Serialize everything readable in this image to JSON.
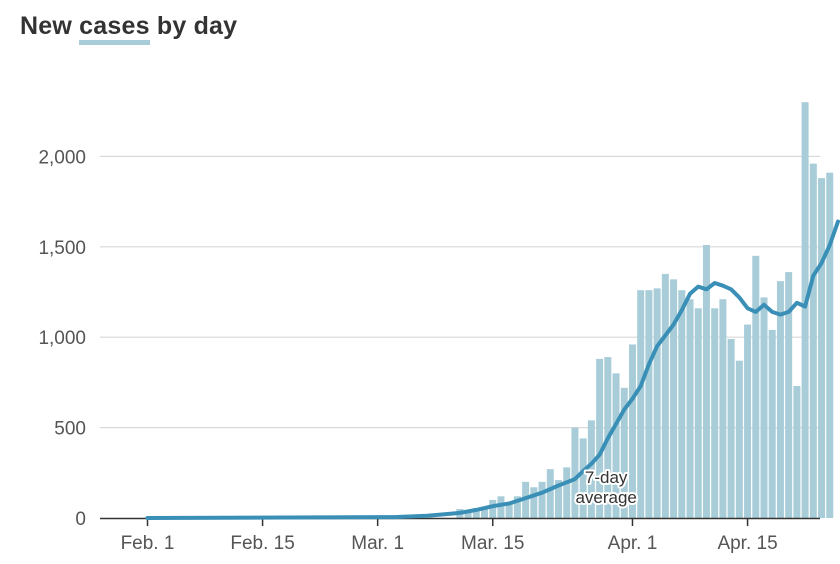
{
  "title": {
    "prefix": "New",
    "highlight": "cases",
    "suffix": "by day"
  },
  "colors": {
    "bar": "#a8cdd9",
    "line": "#3a8fb7",
    "grid": "#d9d9d9",
    "axis": "#333333",
    "text": "#555555"
  },
  "chart_data": {
    "type": "bar",
    "ylim": [
      0,
      2300
    ],
    "yticks": [
      0,
      500,
      1000,
      1500,
      2000
    ],
    "ytick_labels": [
      "0",
      "500",
      "1,000",
      "1,500",
      "2,000"
    ],
    "x_start_day": 0,
    "xticks": [
      {
        "day": 0,
        "label": "Feb. 1"
      },
      {
        "day": 14,
        "label": "Feb. 15"
      },
      {
        "day": 28,
        "label": "Mar. 1"
      },
      {
        "day": 42,
        "label": "Mar. 15"
      },
      {
        "day": 59,
        "label": "Apr. 1"
      },
      {
        "day": 73,
        "label": "Apr. 15"
      }
    ],
    "bars": {
      "name": "New cases",
      "start_day": 0,
      "values": [
        0,
        0,
        0,
        0,
        0,
        0,
        0,
        0,
        0,
        0,
        0,
        0,
        0,
        0,
        0,
        0,
        0,
        0,
        0,
        0,
        0,
        0,
        0,
        0,
        0,
        0,
        0,
        0,
        0,
        0,
        0,
        0,
        0,
        0,
        0,
        0,
        0,
        0,
        50,
        30,
        55,
        60,
        100,
        120,
        85,
        120,
        200,
        170,
        200,
        270,
        210,
        280,
        500,
        440,
        540,
        880,
        890,
        800,
        720,
        960,
        1260,
        1260,
        1270,
        1350,
        1320,
        1260,
        1210,
        1160,
        1510,
        1160,
        1210,
        990,
        870,
        1070,
        1450,
        1220,
        1040,
        1310,
        1360,
        730,
        2300,
        1960,
        1880,
        1910
      ]
    },
    "average": {
      "name": "7-day average",
      "points": [
        [
          0,
          0
        ],
        [
          30,
          5
        ],
        [
          34,
          12
        ],
        [
          36,
          20
        ],
        [
          38,
          28
        ],
        [
          40,
          45
        ],
        [
          42,
          65
        ],
        [
          44,
          80
        ],
        [
          46,
          110
        ],
        [
          48,
          140
        ],
        [
          50,
          180
        ],
        [
          52,
          215
        ],
        [
          53,
          260
        ],
        [
          54,
          300
        ],
        [
          55,
          350
        ],
        [
          56,
          440
        ],
        [
          57,
          520
        ],
        [
          58,
          600
        ],
        [
          59,
          660
        ],
        [
          60,
          730
        ],
        [
          61,
          850
        ],
        [
          62,
          950
        ],
        [
          63,
          1010
        ],
        [
          64,
          1070
        ],
        [
          65,
          1150
        ],
        [
          66,
          1240
        ],
        [
          67,
          1280
        ],
        [
          68,
          1265
        ],
        [
          69,
          1300
        ],
        [
          70,
          1285
        ],
        [
          71,
          1265
        ],
        [
          72,
          1220
        ],
        [
          73,
          1160
        ],
        [
          74,
          1140
        ],
        [
          75,
          1180
        ],
        [
          76,
          1140
        ],
        [
          77,
          1125
        ],
        [
          78,
          1140
        ],
        [
          79,
          1190
        ],
        [
          80,
          1170
        ],
        [
          81,
          1340
        ],
        [
          82,
          1410
        ],
        [
          83,
          1510
        ],
        [
          84,
          1640
        ]
      ]
    },
    "annotation": [
      "7-day",
      "average"
    ]
  }
}
